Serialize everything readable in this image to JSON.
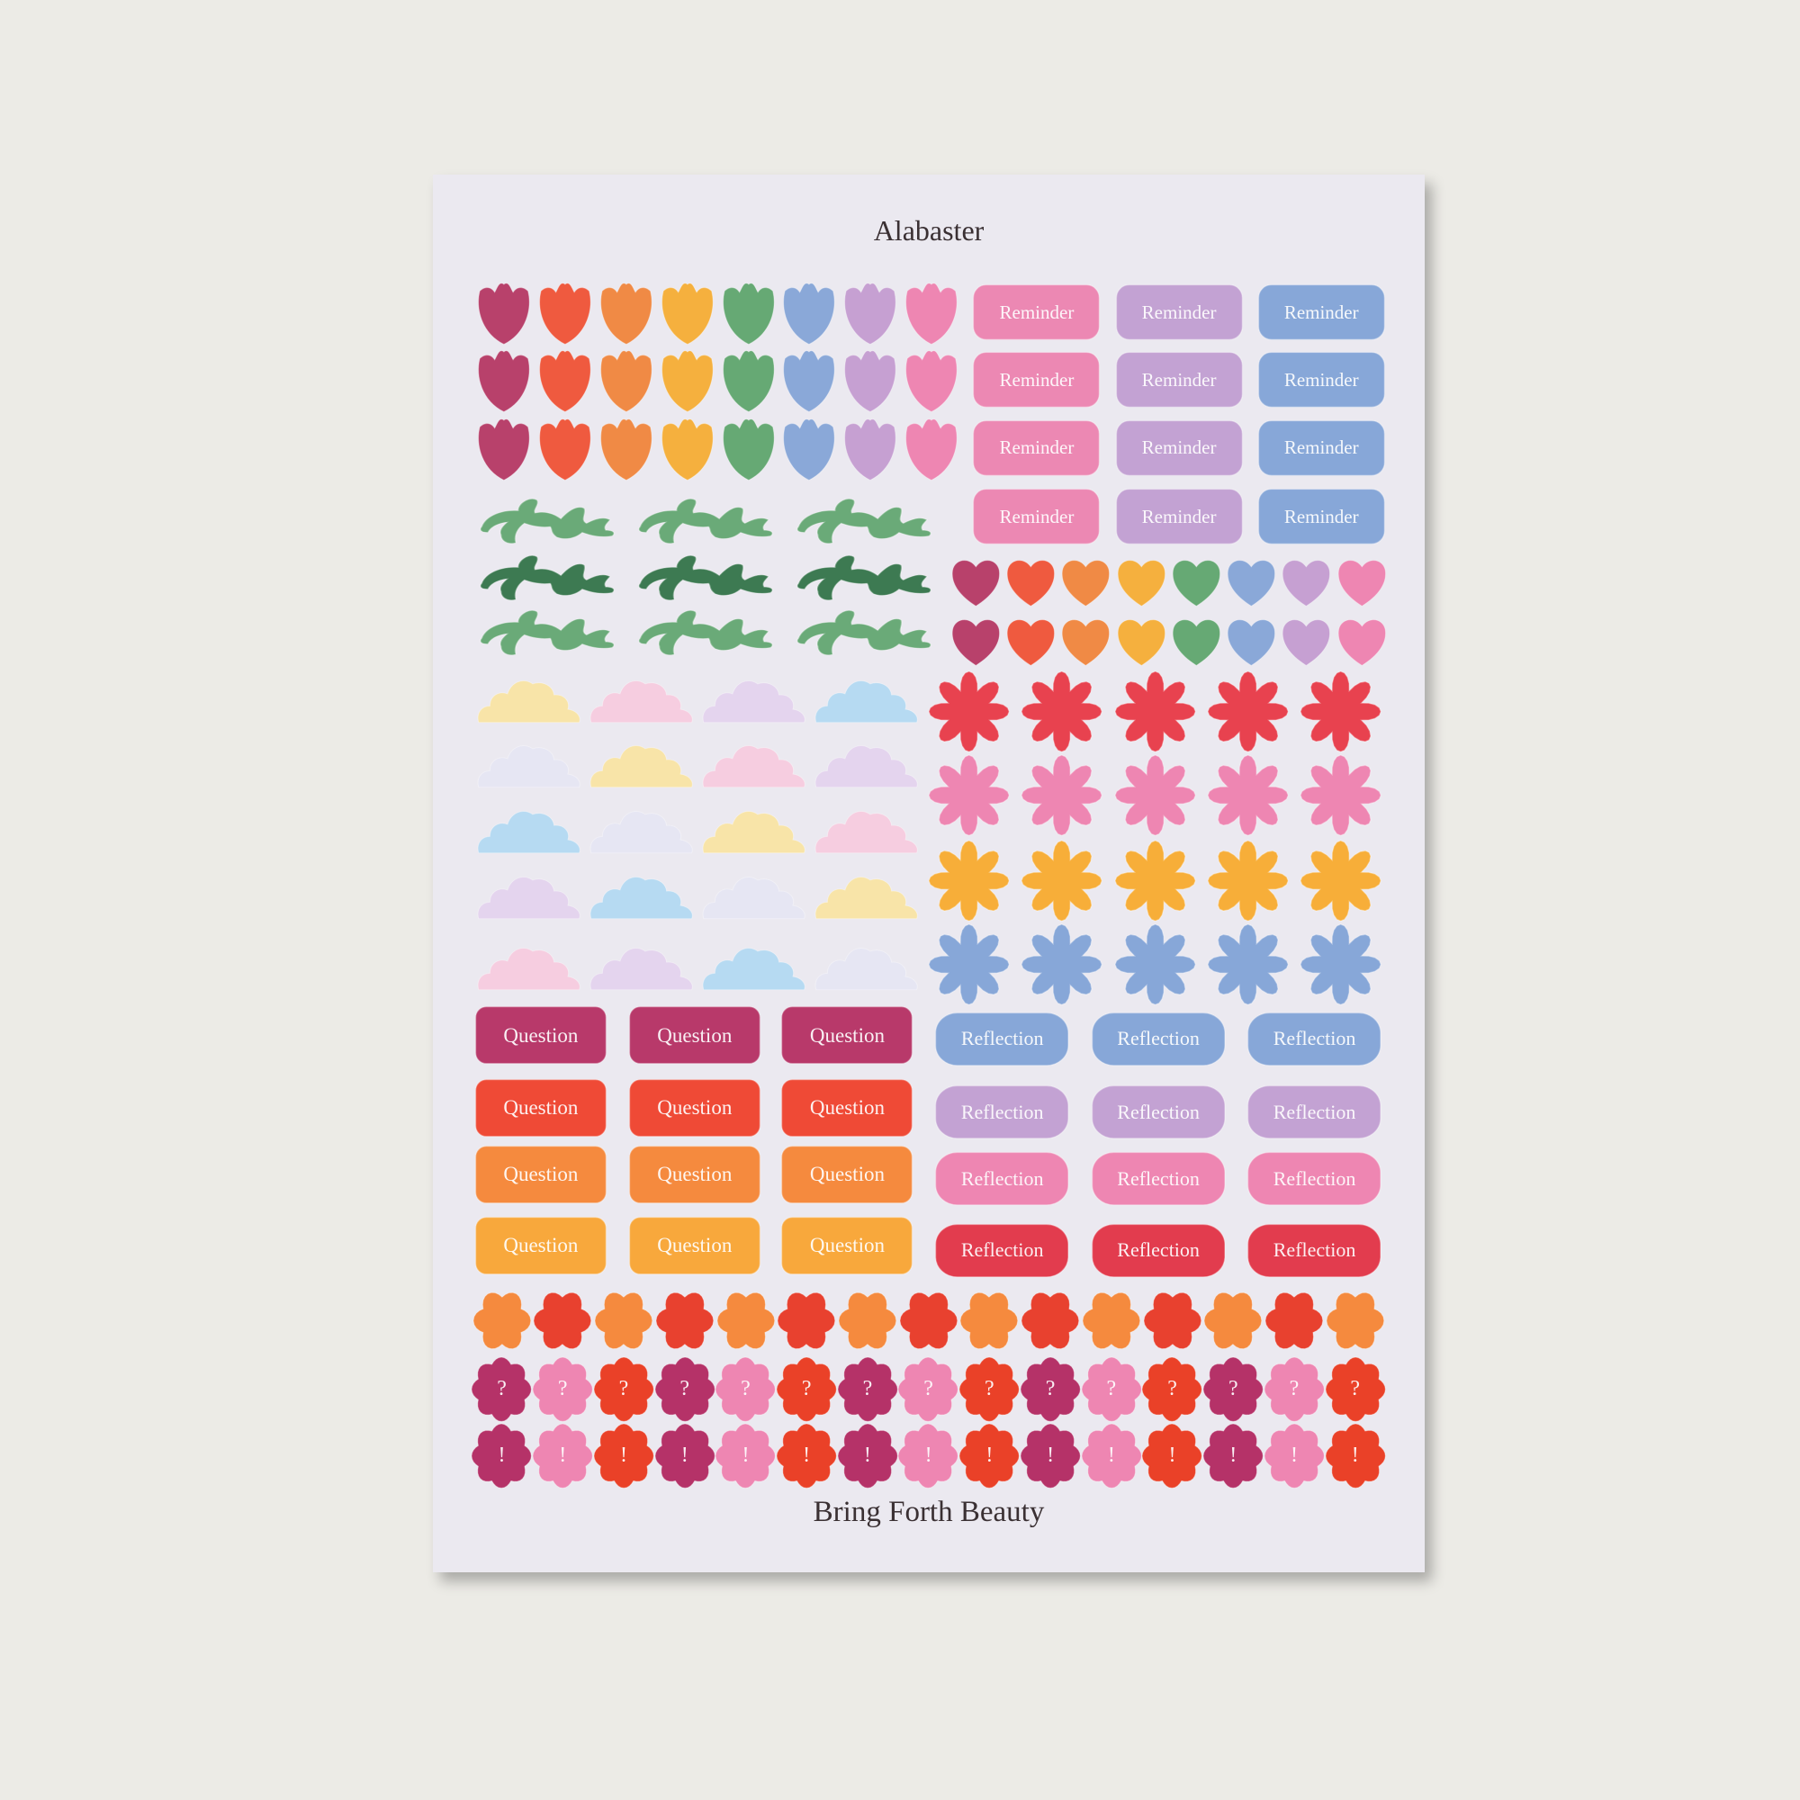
{
  "sheet": {
    "title": "Alabaster",
    "footer": "Bring Forth Beauty",
    "background_color": "#ebe9f0"
  },
  "tulips": {
    "icon": "tulip-icon",
    "colors": [
      "#b8416b",
      "#ef5a3f",
      "#f08a45",
      "#f5b03e",
      "#66a974",
      "#8aa8d8",
      "#c6a0d2",
      "#ee86b2"
    ],
    "rows": 3
  },
  "reminders": {
    "label": "Reminder",
    "colors": [
      "#ec88b3",
      "#c3a2d3",
      "#87a7d8"
    ],
    "rows": 4
  },
  "vines": {
    "icon": "vine-icon",
    "row_colors": [
      "#6aaa78",
      "#3d7a52",
      "#6aaa78"
    ],
    "columns": 3
  },
  "hearts": {
    "icon": "heart-icon",
    "colors": [
      "#b8416b",
      "#ef5a3f",
      "#f08a45",
      "#f5b03e",
      "#66a974",
      "#8aa8d8",
      "#c6a0d2",
      "#ee86b2"
    ],
    "rows": 2
  },
  "clouds": {
    "icon": "cloud-icon",
    "rows": [
      [
        "#f8e4a8",
        "#f6cde0",
        "#e4d4ee",
        "#b6daf2"
      ],
      [
        "#e6e6f3",
        "#f8e4a8",
        "#f6cde0",
        "#e4d4ee"
      ],
      [
        "#b6daf2",
        "#e6e6f3",
        "#f8e4a8",
        "#f6cde0"
      ],
      [
        "#e4d4ee",
        "#b6daf2",
        "#e6e6f3",
        "#f8e4a8"
      ],
      [
        "#f6cde0",
        "#e4d4ee",
        "#b6daf2",
        "#e6e6f3"
      ]
    ]
  },
  "flowers": {
    "icon": "flower-icon",
    "row_colors": [
      "#e8424f",
      "#ee86b2",
      "#f7ae39",
      "#87a7d8"
    ],
    "columns": 5
  },
  "questions": {
    "label": "Question",
    "row_colors": [
      "#b8396a",
      "#ef4a36",
      "#f58a3e",
      "#f8a83c"
    ],
    "columns": 3
  },
  "reflections": {
    "label": "Reflection",
    "row_colors": [
      "#87a7d8",
      "#c3a2d3",
      "#ee86b2",
      "#e23c4e"
    ],
    "columns": 3
  },
  "blossoms": {
    "icon": "blossom-icon",
    "colors": [
      "#f58a3e",
      "#e8412f"
    ],
    "count": 15
  },
  "question_marks": {
    "symbol": "?",
    "colors": [
      "#b53268",
      "#ee86b2",
      "#ea4128"
    ],
    "count": 15
  },
  "exclamation_marks": {
    "symbol": "!",
    "colors": [
      "#b53268",
      "#ee86b2",
      "#ea4128"
    ],
    "count": 15
  }
}
